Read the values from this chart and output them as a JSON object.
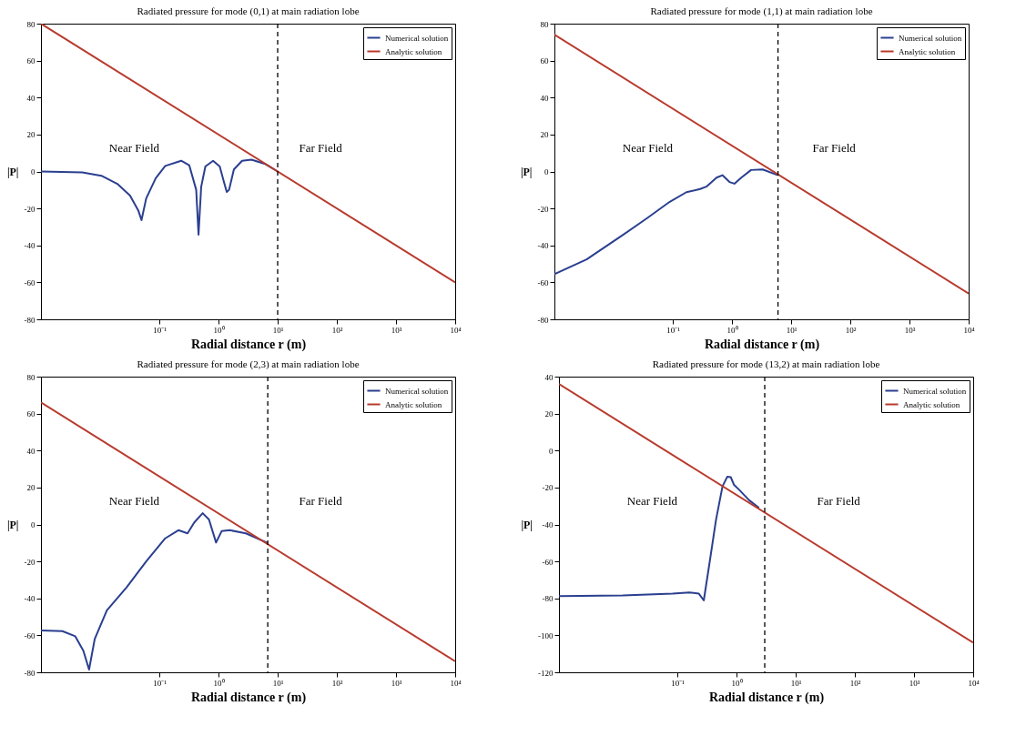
{
  "chart_data": [
    {
      "type": "line",
      "title": "Radiated pressure for mode (0,1) at main radiation lobe",
      "xlabel": "Radial distance r (m)",
      "ylabel": "|P|",
      "log": "x",
      "legend": "top right",
      "xlim": [
        0.001,
        10000
      ],
      "xticks": [
        {
          "value": 0.1,
          "label": "10⁻¹"
        },
        {
          "value": 1,
          "label": "10⁰"
        },
        {
          "value": 10,
          "label": "10¹"
        },
        {
          "value": 100,
          "label": "10²"
        },
        {
          "value": 1000,
          "label": "10³"
        },
        {
          "value": 10000,
          "label": "10⁴"
        }
      ],
      "ylim": [
        -80,
        80
      ],
      "yticks": [
        -80,
        -60,
        -40,
        -20,
        0,
        20,
        40,
        60,
        80
      ],
      "series": [
        {
          "name": "Numerical solution",
          "color": "#2a3f8f",
          "x": [
            0.001,
            0.005,
            0.0105,
            0.0195,
            0.032,
            0.044,
            0.05,
            0.06,
            0.087,
            0.126,
            0.234,
            0.32,
            0.42,
            0.46,
            0.51,
            0.6,
            0.81,
            1.05,
            1.26,
            1.38,
            1.51,
            1.82,
            2.5,
            3.6,
            6,
            10
          ],
          "values": [
            0,
            -0.5,
            -2.3,
            -6.7,
            -13,
            -21,
            -26.3,
            -14.6,
            -3.6,
            3,
            5.8,
            3.4,
            -9.9,
            -34.2,
            -8.3,
            2.7,
            5.8,
            2.7,
            -6.7,
            -11.1,
            -9.9,
            1.1,
            5.8,
            6.4,
            4.2,
            0
          ]
        },
        {
          "name": "Analytic solution",
          "color": "#b83a2c",
          "x": [
            0.001,
            10000
          ],
          "values": [
            80,
            -60
          ]
        }
      ],
      "ref_lines": [
        {
          "axis": "x",
          "value": 10,
          "color": "#000000",
          "line_style": "dashed"
        }
      ],
      "annotations": [
        "Near Field",
        "Far Field"
      ]
    },
    {
      "type": "line",
      "title": "Radiated pressure for mode (1,1) at main radiation lobe",
      "xlabel": "Radial distance r (m)",
      "ylabel": "|P|",
      "log": "x",
      "legend": "top right",
      "xlim": [
        0.001,
        10000
      ],
      "xticks": [
        {
          "value": 0.1,
          "label": "10⁻¹"
        },
        {
          "value": 1,
          "label": "10⁰"
        },
        {
          "value": 10,
          "label": "10¹"
        },
        {
          "value": 100,
          "label": "10²"
        },
        {
          "value": 1000,
          "label": "10³"
        },
        {
          "value": 10000,
          "label": "10⁴"
        }
      ],
      "ylim": [
        -80,
        80
      ],
      "yticks": [
        -80,
        -60,
        -40,
        -20,
        0,
        20,
        40,
        60,
        80
      ],
      "series": [
        {
          "name": "Numerical solution",
          "color": "#2a3f8f",
          "x": [
            0.001,
            0.0035,
            0.013,
            0.036,
            0.089,
            0.17,
            0.29,
            0.37,
            0.55,
            0.69,
            0.91,
            1.1,
            1.44,
            2.1,
            3.3,
            6
          ],
          "values": [
            -55.5,
            -47.6,
            -35.3,
            -25.5,
            -16.4,
            -11.2,
            -9.5,
            -8.2,
            -3.3,
            -2,
            -5.7,
            -6.6,
            -3.3,
            0.8,
            1.1,
            -2
          ]
        },
        {
          "name": "Analytic solution",
          "color": "#b83a2c",
          "x": [
            0.001,
            10000
          ],
          "values": [
            74,
            -66
          ]
        }
      ],
      "ref_lines": [
        {
          "axis": "x",
          "value": 6,
          "color": "#000000",
          "line_style": "dashed"
        }
      ],
      "annotations": [
        "Near Field",
        "Far Field"
      ]
    },
    {
      "type": "line",
      "title": "Radiated pressure for mode (2,3) at main radiation lobe",
      "xlabel": "Radial distance r (m)",
      "ylabel": "|P|",
      "log": "x",
      "legend": "top right",
      "xlim": [
        0.001,
        10000
      ],
      "xticks": [
        {
          "value": 0.1,
          "label": "10⁻¹"
        },
        {
          "value": 1,
          "label": "10⁰"
        },
        {
          "value": 10,
          "label": "10¹"
        },
        {
          "value": 100,
          "label": "10²"
        },
        {
          "value": 1000,
          "label": "10³"
        },
        {
          "value": 10000,
          "label": "10⁴"
        }
      ],
      "ylim": [
        -80,
        80
      ],
      "yticks": [
        -80,
        -60,
        -40,
        -20,
        0,
        20,
        40,
        60,
        80
      ],
      "series": [
        {
          "name": "Numerical solution",
          "color": "#2a3f8f",
          "x": [
            0.001,
            0.0023,
            0.0038,
            0.0052,
            0.0065,
            0.0081,
            0.013,
            0.028,
            0.06,
            0.126,
            0.21,
            0.3,
            0.39,
            0.54,
            0.69,
            0.91,
            1.13,
            1.55,
            2.9,
            6.8
          ],
          "values": [
            -57.4,
            -57.7,
            -60.5,
            -68.3,
            -78.5,
            -62,
            -46.5,
            -34,
            -20,
            -7.5,
            -3.1,
            -4.8,
            1.1,
            6.1,
            2.7,
            -9.8,
            -3.6,
            -3.1,
            -4.8,
            -10
          ]
        },
        {
          "name": "Analytic solution",
          "color": "#b83a2c",
          "x": [
            0.001,
            10000
          ],
          "values": [
            66,
            -74
          ]
        }
      ],
      "ref_lines": [
        {
          "axis": "x",
          "value": 6.8,
          "color": "#000000",
          "line_style": "dashed"
        }
      ],
      "annotations": [
        "Near Field",
        "Far Field"
      ]
    },
    {
      "type": "line",
      "title": "Radiated pressure for mode (13,2) at main radiation lobe",
      "xlabel": "Radial distance r (m)",
      "ylabel": "|P|",
      "log": "x",
      "legend": "top right",
      "xlim": [
        0.001,
        10000
      ],
      "xticks": [
        {
          "value": 0.1,
          "label": "10⁻¹"
        },
        {
          "value": 1,
          "label": "10⁰"
        },
        {
          "value": 10,
          "label": "10¹"
        },
        {
          "value": 100,
          "label": "10²"
        },
        {
          "value": 1000,
          "label": "10³"
        },
        {
          "value": 10000,
          "label": "10⁴"
        }
      ],
      "ylim": [
        -120,
        40
      ],
      "yticks": [
        -120,
        -100,
        -80,
        -60,
        -40,
        -20,
        0,
        20,
        40
      ],
      "series": [
        {
          "name": "Numerical solution",
          "color": "#2a3f8f",
          "x": [
            0.001,
            0.012,
            0.083,
            0.16,
            0.23,
            0.28,
            0.35,
            0.45,
            0.58,
            0.7,
            0.8,
            0.91,
            1.1,
            1.64,
            2.4
          ],
          "values": [
            -78.8,
            -78.4,
            -77.4,
            -76.8,
            -77.4,
            -81.1,
            -60.9,
            -37.6,
            -19.4,
            -14.1,
            -14.4,
            -18.6,
            -21.1,
            -26.9,
            -31
          ]
        },
        {
          "name": "Analytic solution",
          "color": "#b83a2c",
          "x": [
            0.001,
            10000
          ],
          "values": [
            36,
            -104
          ]
        }
      ],
      "ref_lines": [
        {
          "axis": "x",
          "value": 3,
          "color": "#000000",
          "line_style": "dashed"
        }
      ],
      "annotations": [
        "Near Field",
        "Far Field"
      ]
    }
  ]
}
